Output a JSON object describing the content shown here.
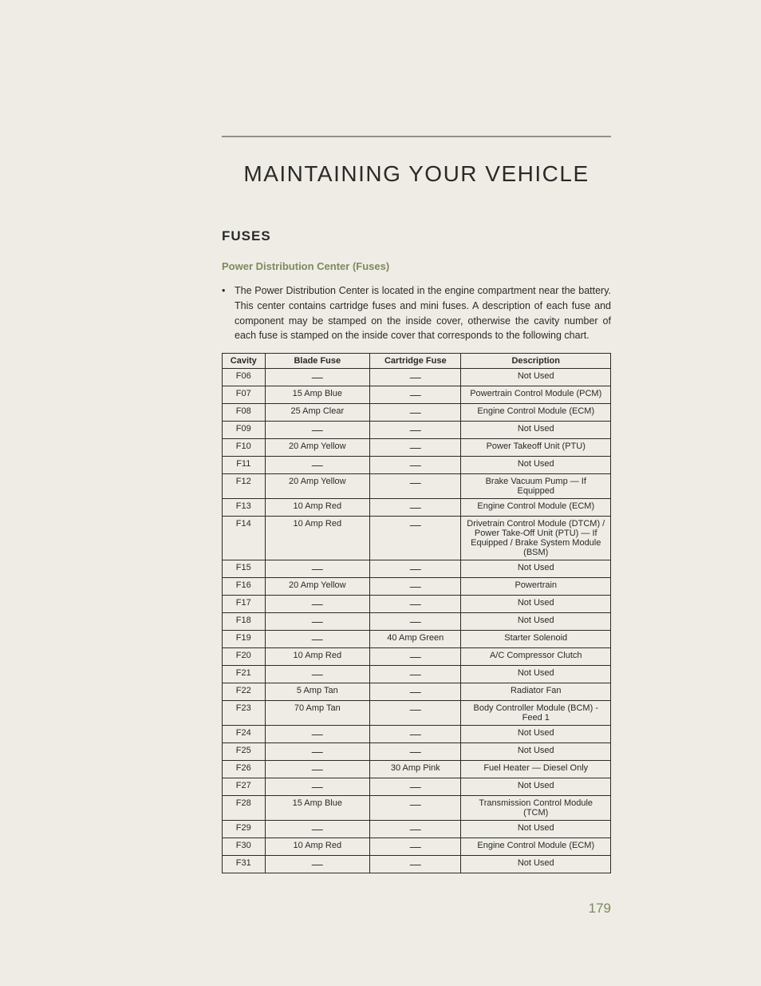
{
  "chapter_title": "MAINTAINING YOUR VEHICLE",
  "section_header": "FUSES",
  "subsection_header": "Power Distribution Center (Fuses)",
  "intro_paragraph": "The Power Distribution Center is located in the engine compartment near the battery. This center contains cartridge fuses and mini fuses. A description of each fuse and component may be stamped on the inside cover, otherwise the cavity number of each fuse is stamped on the inside cover that corresponds to the following chart.",
  "page_number": "179",
  "table": {
    "headers": {
      "cavity": "Cavity",
      "blade": "Blade Fuse",
      "cartridge": "Cartridge Fuse",
      "description": "Description"
    },
    "rows": [
      {
        "cavity": "F06",
        "blade": "—",
        "cartridge": "—",
        "description": "Not Used"
      },
      {
        "cavity": "F07",
        "blade": "15 Amp Blue",
        "cartridge": "—",
        "description": "Powertrain Control Module (PCM)"
      },
      {
        "cavity": "F08",
        "blade": "25 Amp Clear",
        "cartridge": "—",
        "description": "Engine Control Module (ECM)"
      },
      {
        "cavity": "F09",
        "blade": "—",
        "cartridge": "—",
        "description": "Not Used"
      },
      {
        "cavity": "F10",
        "blade": "20 Amp Yellow",
        "cartridge": "—",
        "description": "Power Takeoff Unit (PTU)"
      },
      {
        "cavity": "F11",
        "blade": "—",
        "cartridge": "—",
        "description": "Not Used"
      },
      {
        "cavity": "F12",
        "blade": "20 Amp Yellow",
        "cartridge": "—",
        "description": "Brake Vacuum Pump — If Equipped"
      },
      {
        "cavity": "F13",
        "blade": "10 Amp Red",
        "cartridge": "—",
        "description": "Engine Control Module (ECM)"
      },
      {
        "cavity": "F14",
        "blade": "10 Amp Red",
        "cartridge": "—",
        "description": "Drivetrain Control Module (DTCM) / Power Take-Off Unit (PTU) — If Equipped / Brake System Module (BSM)"
      },
      {
        "cavity": "F15",
        "blade": "—",
        "cartridge": "—",
        "description": "Not Used"
      },
      {
        "cavity": "F16",
        "blade": "20 Amp Yellow",
        "cartridge": "—",
        "description": "Powertrain"
      },
      {
        "cavity": "F17",
        "blade": "—",
        "cartridge": "—",
        "description": "Not Used"
      },
      {
        "cavity": "F18",
        "blade": "—",
        "cartridge": "—",
        "description": "Not Used"
      },
      {
        "cavity": "F19",
        "blade": "—",
        "cartridge": "40 Amp Green",
        "description": "Starter Solenoid"
      },
      {
        "cavity": "F20",
        "blade": "10 Amp Red",
        "cartridge": "—",
        "description": "A/C Compressor Clutch"
      },
      {
        "cavity": "F21",
        "blade": "—",
        "cartridge": "—",
        "description": "Not Used"
      },
      {
        "cavity": "F22",
        "blade": "5 Amp Tan",
        "cartridge": "—",
        "description": "Radiator Fan"
      },
      {
        "cavity": "F23",
        "blade": "70 Amp Tan",
        "cartridge": "—",
        "description": "Body Controller Module (BCM) - Feed 1"
      },
      {
        "cavity": "F24",
        "blade": "—",
        "cartridge": "—",
        "description": "Not Used"
      },
      {
        "cavity": "F25",
        "blade": "—",
        "cartridge": "—",
        "description": "Not Used"
      },
      {
        "cavity": "F26",
        "blade": "—",
        "cartridge": "30 Amp Pink",
        "description": "Fuel Heater — Diesel Only"
      },
      {
        "cavity": "F27",
        "blade": "—",
        "cartridge": "—",
        "description": "Not Used"
      },
      {
        "cavity": "F28",
        "blade": "15 Amp Blue",
        "cartridge": "—",
        "description": "Transmission Control Module (TCM)"
      },
      {
        "cavity": "F29",
        "blade": "—",
        "cartridge": "—",
        "description": "Not Used"
      },
      {
        "cavity": "F30",
        "blade": "10 Amp Red",
        "cartridge": "—",
        "description": "Engine Control Module (ECM)"
      },
      {
        "cavity": "F31",
        "blade": "—",
        "cartridge": "—",
        "description": "Not Used"
      }
    ]
  }
}
